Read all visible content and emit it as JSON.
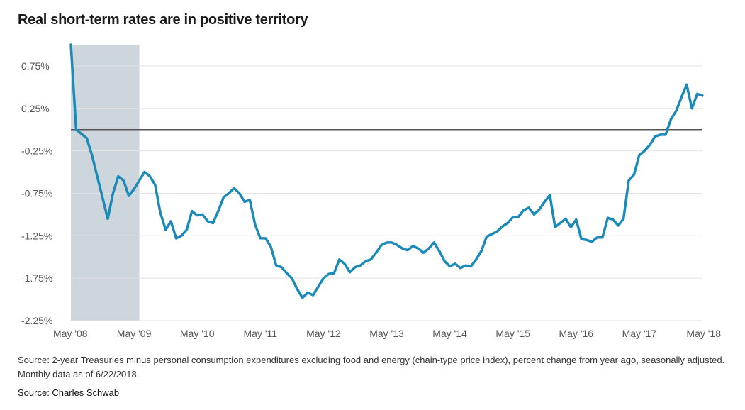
{
  "title": "Real short-term rates are in positive territory",
  "note": "Source:  2-year Treasuries minus personal consumption expenditures excluding food and energy (chain-type price index), percent change from year ago, seasonally adjusted. Monthly data as of 6/22/2018.",
  "source": "Source: Charles Schwab",
  "colors": {
    "line": "#1b8ab9",
    "shade": "#cdd5dd",
    "grid": "#e3e3e3",
    "zero": "#555555"
  },
  "chart_data": {
    "type": "line",
    "title": "Real short-term rates are in positive territory",
    "xlabel": "",
    "ylabel": "",
    "x_tick_labels": [
      "May '08",
      "May '09",
      "May '10",
      "May '11",
      "May '12",
      "May '13",
      "May '14",
      "May '15",
      "May '16",
      "May '17",
      "May '18"
    ],
    "y_tick_labels": [
      "0.75%",
      "0.25%",
      "-0.25%",
      "-0.75%",
      "-1.25%",
      "-1.75%",
      "-2.25%"
    ],
    "y_ticks": [
      0.75,
      0.25,
      -0.25,
      -0.75,
      -1.25,
      -1.75,
      -2.25
    ],
    "ylim": [
      -2.25,
      1.0
    ],
    "xlim": [
      "2008-05",
      "2018-05"
    ],
    "grid": true,
    "reference_line": 0,
    "shaded_region": {
      "start": "2008-05",
      "end": "2009-06"
    },
    "series": [
      {
        "x": [
          "2008-05",
          "2008-06",
          "2008-07",
          "2008-08",
          "2008-09",
          "2008-10",
          "2008-11",
          "2008-12",
          "2009-01",
          "2009-02",
          "2009-03",
          "2009-04",
          "2009-05",
          "2009-06",
          "2009-07",
          "2009-08",
          "2009-09",
          "2009-10",
          "2009-11",
          "2009-12",
          "2010-01",
          "2010-02",
          "2010-03",
          "2010-04",
          "2010-05",
          "2010-06",
          "2010-07",
          "2010-08",
          "2010-09",
          "2010-10",
          "2010-11",
          "2010-12",
          "2011-01",
          "2011-02",
          "2011-03",
          "2011-04",
          "2011-05",
          "2011-06",
          "2011-07",
          "2011-08",
          "2011-09",
          "2011-10",
          "2011-11",
          "2011-12",
          "2012-01",
          "2012-02",
          "2012-03",
          "2012-04",
          "2012-05",
          "2012-06",
          "2012-07",
          "2012-08",
          "2012-09",
          "2012-10",
          "2012-11",
          "2012-12",
          "2013-01",
          "2013-02",
          "2013-03",
          "2013-04",
          "2013-05",
          "2013-06",
          "2013-07",
          "2013-08",
          "2013-09",
          "2013-10",
          "2013-11",
          "2013-12",
          "2014-01",
          "2014-02",
          "2014-03",
          "2014-04",
          "2014-05",
          "2014-06",
          "2014-07",
          "2014-08",
          "2014-09",
          "2014-10",
          "2014-11",
          "2014-12",
          "2015-01",
          "2015-02",
          "2015-03",
          "2015-04",
          "2015-05",
          "2015-06",
          "2015-07",
          "2015-08",
          "2015-09",
          "2015-10",
          "2015-11",
          "2015-12",
          "2016-01",
          "2016-02",
          "2016-03",
          "2016-04",
          "2016-05",
          "2016-06",
          "2016-07",
          "2016-08",
          "2016-09",
          "2016-10",
          "2016-11",
          "2016-12",
          "2017-01",
          "2017-02",
          "2017-03",
          "2017-04",
          "2017-05",
          "2017-06",
          "2017-07",
          "2017-08",
          "2017-09",
          "2017-10",
          "2017-11",
          "2017-12",
          "2018-01",
          "2018-02",
          "2018-03",
          "2018-04",
          "2018-05"
        ],
        "values": [
          1.0,
          0.0,
          -0.05,
          -0.1,
          -0.3,
          -0.55,
          -0.8,
          -1.05,
          -0.75,
          -0.55,
          -0.6,
          -0.78,
          -0.7,
          -0.6,
          -0.5,
          -0.55,
          -0.65,
          -0.98,
          -1.18,
          -1.08,
          -1.28,
          -1.25,
          -1.18,
          -0.96,
          -1.01,
          -1.0,
          -1.08,
          -1.1,
          -0.96,
          -0.8,
          -0.75,
          -0.69,
          -0.75,
          -0.85,
          -0.83,
          -1.12,
          -1.28,
          -1.28,
          -1.38,
          -1.6,
          -1.62,
          -1.69,
          -1.75,
          -1.88,
          -1.98,
          -1.92,
          -1.95,
          -1.85,
          -1.75,
          -1.7,
          -1.69,
          -1.53,
          -1.58,
          -1.68,
          -1.62,
          -1.6,
          -1.55,
          -1.53,
          -1.45,
          -1.36,
          -1.33,
          -1.33,
          -1.36,
          -1.4,
          -1.42,
          -1.37,
          -1.4,
          -1.45,
          -1.4,
          -1.33,
          -1.43,
          -1.55,
          -1.61,
          -1.58,
          -1.63,
          -1.6,
          -1.61,
          -1.53,
          -1.43,
          -1.26,
          -1.23,
          -1.2,
          -1.14,
          -1.1,
          -1.03,
          -1.03,
          -0.95,
          -0.92,
          -1.0,
          -0.94,
          -0.85,
          -0.77,
          -1.15,
          -1.1,
          -1.05,
          -1.15,
          -1.06,
          -1.29,
          -1.3,
          -1.32,
          -1.27,
          -1.27,
          -1.04,
          -1.06,
          -1.13,
          -1.05,
          -0.6,
          -0.53,
          -0.3,
          -0.25,
          -0.18,
          -0.08,
          -0.06,
          -0.06,
          0.12,
          0.22,
          0.38,
          0.53,
          0.25,
          0.42,
          0.4
        ]
      }
    ]
  }
}
